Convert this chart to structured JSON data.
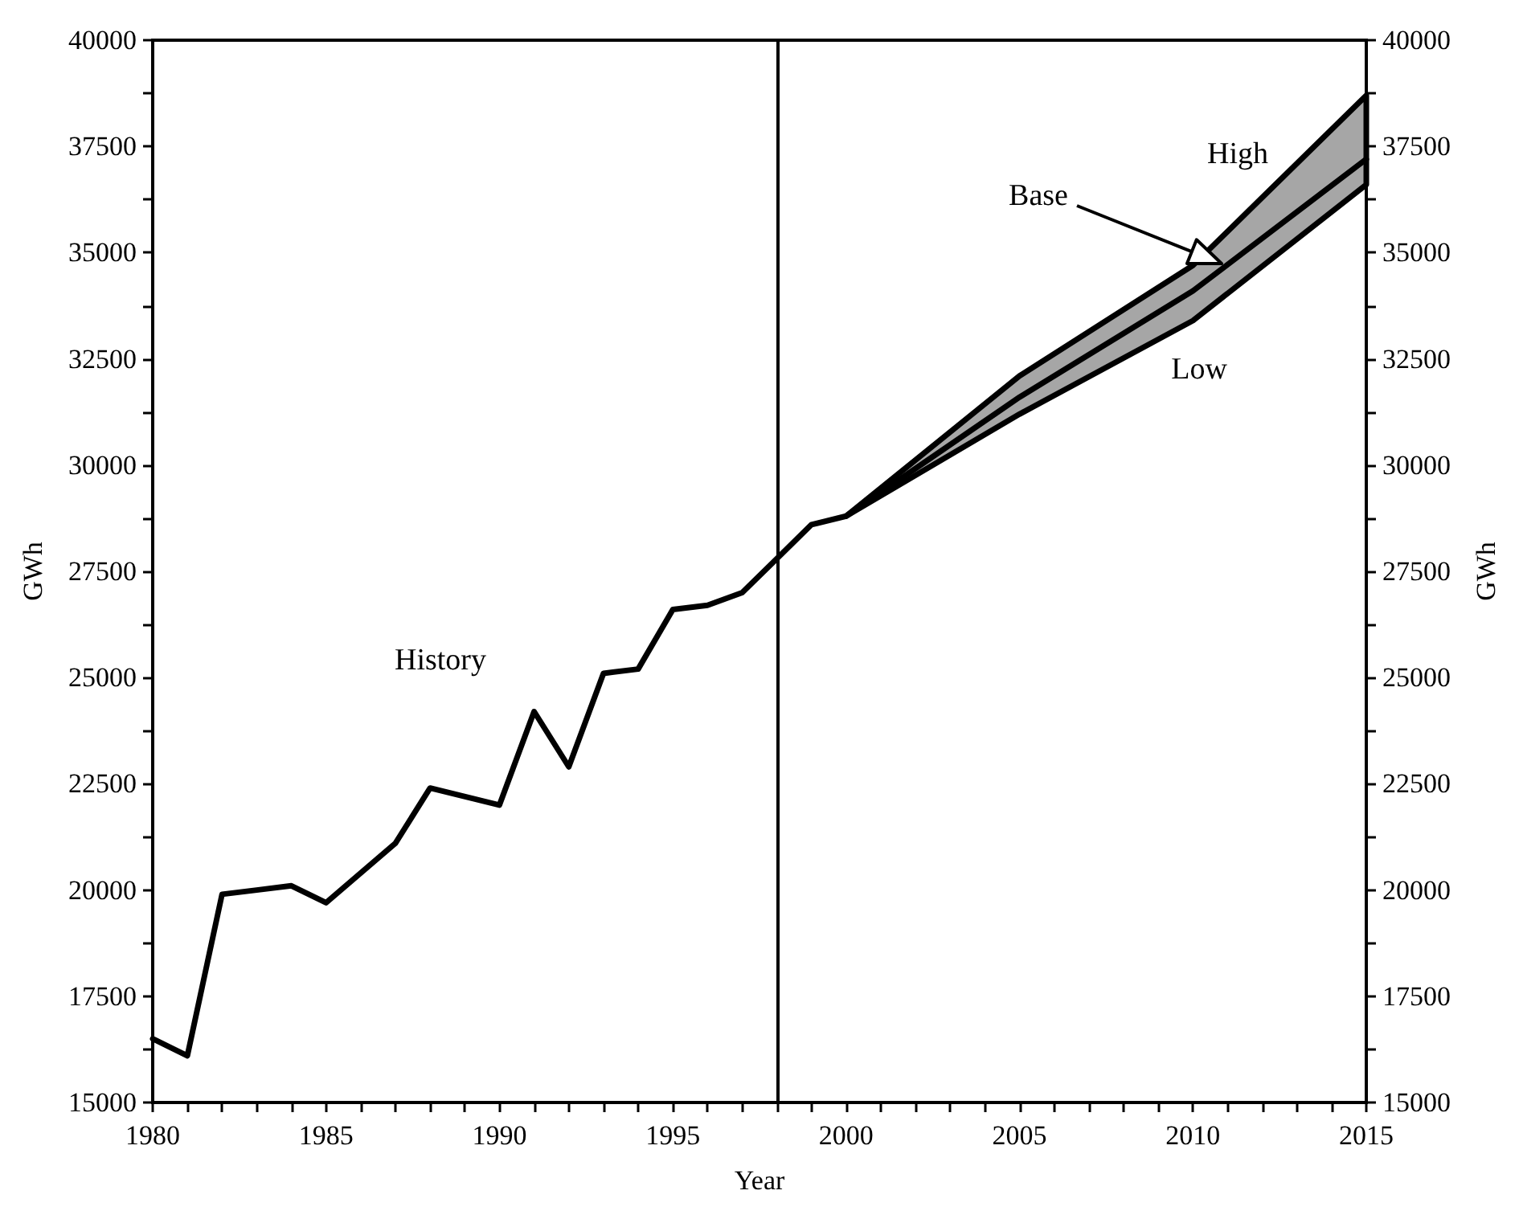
{
  "chart_data": {
    "type": "line",
    "xlabel": "Year",
    "ylabel": "GWh",
    "y2label": "GWh",
    "marker": "none",
    "line_style": "solid",
    "xlim": [
      1980,
      2015
    ],
    "xticks": [
      1980,
      {
        "value": 1981,
        "label": null
      },
      {
        "value": 1982,
        "label": null
      },
      {
        "value": 1983,
        "label": null
      },
      {
        "value": 1984,
        "label": null
      },
      1985,
      {
        "value": 1986,
        "label": null
      },
      {
        "value": 1987,
        "label": null
      },
      {
        "value": 1988,
        "label": null
      },
      {
        "value": 1989,
        "label": null
      },
      1990,
      {
        "value": 1991,
        "label": null
      },
      {
        "value": 1992,
        "label": null
      },
      {
        "value": 1993,
        "label": null
      },
      {
        "value": 1994,
        "label": null
      },
      1995,
      {
        "value": 1996,
        "label": null
      },
      {
        "value": 1997,
        "label": null
      },
      {
        "value": 1998,
        "label": null
      },
      {
        "value": 1999,
        "label": null
      },
      2000,
      {
        "value": 2001,
        "label": null
      },
      {
        "value": 2002,
        "label": null
      },
      {
        "value": 2003,
        "label": null
      },
      {
        "value": 2004,
        "label": null
      },
      2005,
      {
        "value": 2006,
        "label": null
      },
      {
        "value": 2007,
        "label": null
      },
      {
        "value": 2008,
        "label": null
      },
      {
        "value": 2009,
        "label": null
      },
      2010,
      {
        "value": 2011,
        "label": null
      },
      {
        "value": 2012,
        "label": null
      },
      {
        "value": 2013,
        "label": null
      },
      {
        "value": 2014,
        "label": null
      },
      2015
    ],
    "ylim": [
      15000,
      40000
    ],
    "yticks": [
      15000,
      {
        "value": 16250,
        "label": null
      },
      17500,
      {
        "value": 18750,
        "label": null
      },
      20000,
      {
        "value": 21250,
        "label": null
      },
      22500,
      {
        "value": 23750,
        "label": null
      },
      25000,
      {
        "value": 26250,
        "label": null
      },
      27500,
      {
        "value": 28750,
        "label": null
      },
      30000,
      {
        "value": 31250,
        "label": null
      },
      32500,
      {
        "value": 33750,
        "label": null
      },
      35000,
      {
        "value": 36250,
        "label": null
      },
      37500,
      {
        "value": 38750,
        "label": null
      },
      40000
    ],
    "y2lim": [
      15000,
      40000
    ],
    "y2ticks": [
      15000,
      {
        "value": 16250,
        "label": null
      },
      17500,
      {
        "value": 18750,
        "label": null
      },
      20000,
      {
        "value": 21250,
        "label": null
      },
      22500,
      {
        "value": 23750,
        "label": null
      },
      25000,
      {
        "value": 26250,
        "label": null
      },
      27500,
      {
        "value": 28750,
        "label": null
      },
      30000,
      {
        "value": 31250,
        "label": null
      },
      32500,
      {
        "value": 33750,
        "label": null
      },
      35000,
      {
        "value": 36250,
        "label": null
      },
      37500,
      {
        "value": 38750,
        "label": null
      },
      40000
    ],
    "ref_lines": [
      {
        "axis": "x",
        "value": 1998
      }
    ],
    "annotations": [
      "High",
      "Base",
      "Low",
      "History"
    ],
    "series": [
      {
        "color": "#000000",
        "x": [
          1980,
          1981,
          1982,
          1983,
          1984,
          1985,
          1987,
          1988,
          1990,
          1991,
          1992,
          1993,
          1994,
          1995,
          1996,
          1997,
          1998,
          1999,
          2000,
          2005,
          2010,
          2015
        ],
        "values": [
          16500,
          16100,
          19900,
          20000,
          20100,
          19700,
          21100,
          22400,
          22000,
          24200,
          22900,
          25100,
          25200,
          26600,
          26700,
          27000,
          27800,
          28600,
          28800,
          31600,
          34100,
          37200
        ],
        "lower": [
          null,
          null,
          null,
          null,
          null,
          null,
          null,
          null,
          null,
          null,
          null,
          null,
          null,
          null,
          null,
          null,
          null,
          null,
          28800,
          31200,
          33400,
          36600
        ],
        "upper": [
          null,
          null,
          null,
          null,
          null,
          null,
          null,
          null,
          null,
          null,
          null,
          null,
          null,
          null,
          null,
          null,
          null,
          null,
          28800,
          32100,
          34700,
          38700
        ]
      }
    ]
  }
}
